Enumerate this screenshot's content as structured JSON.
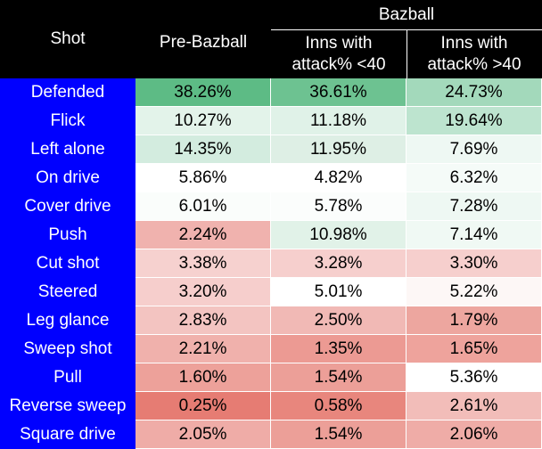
{
  "header": {
    "shot": "Shot",
    "pre_bazball": "Pre-Bazball",
    "bazball": "Bazball",
    "inns_lt40_line1": "Inns with",
    "inns_lt40_line2": "attack% <40",
    "inns_gt40_line1": "Inns with",
    "inns_gt40_line2": "attack% >40"
  },
  "rows": [
    {
      "shot": "Defended",
      "pre": "38.26%",
      "lt40": "36.61%",
      "gt40": "24.73%",
      "colors": [
        "#5dbb85",
        "#6dc291",
        "#a3d9bb"
      ]
    },
    {
      "shot": "Flick",
      "pre": "10.27%",
      "lt40": "11.18%",
      "gt40": "19.64%",
      "colors": [
        "#e3f3ea",
        "#e0f2e8",
        "#bde4cf"
      ]
    },
    {
      "shot": "Left alone",
      "pre": "14.35%",
      "lt40": "11.95%",
      "gt40": "7.69%",
      "colors": [
        "#d3ecdf",
        "#deefe5",
        "#eef8f3"
      ]
    },
    {
      "shot": "On drive",
      "pre": "5.86%",
      "lt40": "4.82%",
      "gt40": "6.32%",
      "colors": [
        "#ffffff",
        "#ffffff",
        "#f5fbf8"
      ]
    },
    {
      "shot": "Cover drive",
      "pre": "6.01%",
      "lt40": "5.78%",
      "gt40": "7.28%",
      "colors": [
        "#fafdfb",
        "#fbfdfc",
        "#eef8f3"
      ]
    },
    {
      "shot": "Push",
      "pre": "2.24%",
      "lt40": "10.98%",
      "gt40": "7.14%",
      "colors": [
        "#f0b2ae",
        "#e1f2e8",
        "#f0f9f4"
      ]
    },
    {
      "shot": "Cut shot",
      "pre": "3.38%",
      "lt40": "3.28%",
      "gt40": "3.30%",
      "colors": [
        "#f6d1cf",
        "#f6cfcd",
        "#f6cfcd"
      ]
    },
    {
      "shot": "Steered",
      "pre": "3.20%",
      "lt40": "5.01%",
      "gt40": "5.22%",
      "colors": [
        "#f6cecc",
        "#ffffff",
        "#fdf7f6"
      ]
    },
    {
      "shot": "Leg glance",
      "pre": "2.83%",
      "lt40": "2.50%",
      "gt40": "1.79%",
      "colors": [
        "#f3c4c1",
        "#f1b9b5",
        "#eda69f"
      ]
    },
    {
      "shot": "Sweep shot",
      "pre": "2.21%",
      "lt40": "1.35%",
      "gt40": "1.65%",
      "colors": [
        "#f0b1ac",
        "#ec9a93",
        "#eea39c"
      ]
    },
    {
      "shot": "Pull",
      "pre": "1.60%",
      "lt40": "1.54%",
      "gt40": "5.36%",
      "colors": [
        "#eda19a",
        "#ec9f98",
        "#ffffff"
      ]
    },
    {
      "shot": "Reverse sweep",
      "pre": "0.25%",
      "lt40": "0.58%",
      "gt40": "2.61%",
      "colors": [
        "#e67c73",
        "#e8867d",
        "#f2bdb9"
      ]
    },
    {
      "shot": "Square drive",
      "pre": "2.05%",
      "lt40": "1.54%",
      "gt40": "2.06%",
      "colors": [
        "#efaca7",
        "#ec9f98",
        "#efaca7"
      ]
    }
  ]
}
